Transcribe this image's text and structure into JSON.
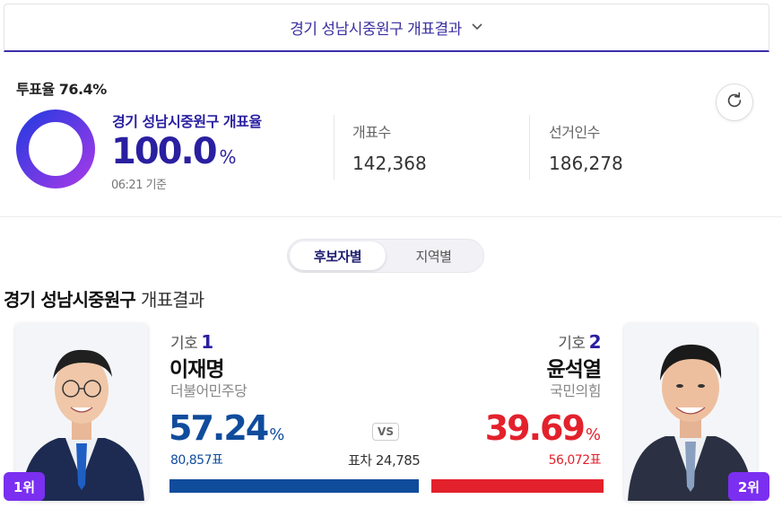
{
  "header": {
    "region_label": "경기 성남시중원구 개표결과",
    "dropdown_icon": "chevron-down-icon"
  },
  "summary": {
    "turnout_label": "투표율 76.4%",
    "count_title": "경기 성남시중원구 개표율",
    "count_rate": "100.0",
    "count_rate_unit": "%",
    "count_rate_value": 100.0,
    "updated_time": "06:21 기준",
    "ballots_counted_label": "개표수",
    "ballots_counted": "142,368",
    "electorate_label": "선거인수",
    "electorate": "186,278",
    "refresh_icon": "refresh-icon"
  },
  "tabs": [
    {
      "label": "후보자별",
      "active": true
    },
    {
      "label": "지역별",
      "active": false
    }
  ],
  "results": {
    "title_bold": "경기 성남시중원구",
    "title_rest": "개표결과",
    "vs_label": "VS",
    "margin_label": "표차 24,785",
    "candidates": [
      {
        "ballot_prefix": "기호",
        "ballot_number": "1",
        "name": "이재명",
        "party": "더불어민주당",
        "percent": "57.24",
        "percent_unit": "%",
        "percent_value": 57.24,
        "votes": "80,857표",
        "rank": "1위",
        "color": "#104c9c"
      },
      {
        "ballot_prefix": "기호",
        "ballot_number": "2",
        "name": "윤석열",
        "party": "국민의힘",
        "percent": "39.69",
        "percent_unit": "%",
        "percent_value": 39.69,
        "votes": "56,072표",
        "rank": "2위",
        "color": "#e3212c"
      }
    ]
  },
  "colors": {
    "accent": "#2a1fa0",
    "rank_badge": "#7b2ff0",
    "donut_start": "#2a3ae0",
    "donut_end": "#a03ae8"
  }
}
